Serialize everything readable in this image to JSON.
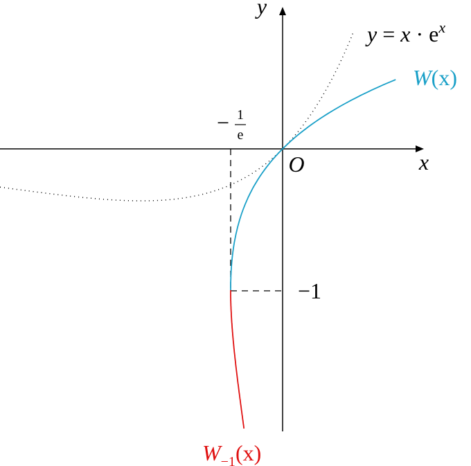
{
  "labels": {
    "y_axis": "y",
    "x_axis": "x",
    "origin": "O",
    "curve": {
      "base_y": "y",
      "eq": " = ",
      "base_x": "x",
      "dot": " · e",
      "sup": "x"
    },
    "w0": {
      "name": "W",
      "arg": "(x)"
    },
    "wm1": {
      "name": "W",
      "sub": "−1",
      "arg": "(x)"
    },
    "neg_inv_e": {
      "sign": "−",
      "num": "1",
      "den": "e"
    },
    "neg_one": "−1"
  }
}
